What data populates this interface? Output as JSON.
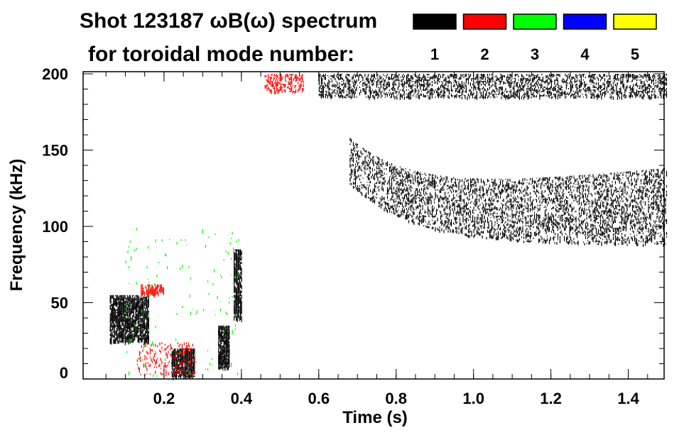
{
  "chart_data": {
    "type": "heatmap",
    "title": "Shot 123187 ωB(ω) spectrum",
    "subtitle": "for toroidal mode number:",
    "xlabel": "Time (s)",
    "ylabel": "Frequency (kHz)",
    "xlim": [
      0,
      1.5
    ],
    "ylim": [
      0,
      200
    ],
    "xticks": [
      0.2,
      0.4,
      0.6,
      0.8,
      1.0,
      1.2,
      1.4
    ],
    "xtick_labels": [
      "0.2",
      "0.4",
      "0.6",
      "0.8",
      "1.0",
      "1.2",
      "1.4"
    ],
    "yticks": [
      0,
      50,
      100,
      150,
      200
    ],
    "ytick_labels": [
      "0",
      "50",
      "100",
      "150",
      "200"
    ],
    "legend": [
      {
        "label": "1",
        "color": "#000000"
      },
      {
        "label": "2",
        "color": "#ff0000"
      },
      {
        "label": "3",
        "color": "#00ff00"
      },
      {
        "label": "4",
        "color": "#0000ff"
      },
      {
        "label": "5",
        "color": "#ffff00"
      }
    ],
    "legend_position": "top-right",
    "features": [
      {
        "mode": 1,
        "t": [
          0.06,
          0.16
        ],
        "f": [
          25,
          55
        ],
        "density": 0.7
      },
      {
        "mode": 2,
        "t": [
          0.14,
          0.2
        ],
        "f": [
          56,
          62
        ],
        "density": 0.6
      },
      {
        "mode": 1,
        "t": [
          0.22,
          0.28
        ],
        "f": [
          2,
          20
        ],
        "density": 0.8
      },
      {
        "mode": 2,
        "t": [
          0.13,
          0.28
        ],
        "f": [
          3,
          24
        ],
        "density": 0.15
      },
      {
        "mode": 1,
        "t": [
          0.34,
          0.37
        ],
        "f": [
          8,
          35
        ],
        "density": 0.8
      },
      {
        "mode": 1,
        "t": [
          0.38,
          0.4
        ],
        "f": [
          40,
          85
        ],
        "density": 0.7
      },
      {
        "mode": 2,
        "t": [
          0.46,
          0.56
        ],
        "f": [
          188,
          200
        ],
        "density": 0.35
      },
      {
        "mode": 1,
        "t": [
          0.6,
          1.5
        ],
        "f": [
          185,
          200
        ],
        "density": 0.35
      },
      {
        "mode": 1,
        "t": [
          0.68,
          1.5
        ],
        "f": [
          88,
          160
        ],
        "density": 0.28,
        "shape": "chirp"
      },
      {
        "mode": 3,
        "t": [
          0.1,
          0.4
        ],
        "f": [
          0,
          100
        ],
        "density": 0.01
      }
    ]
  }
}
